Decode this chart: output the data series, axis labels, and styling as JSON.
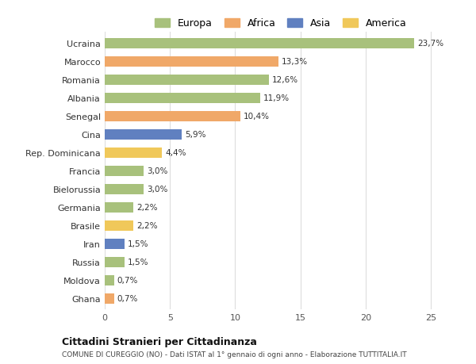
{
  "categories": [
    "Ucraina",
    "Marocco",
    "Romania",
    "Albania",
    "Senegal",
    "Cina",
    "Rep. Dominicana",
    "Francia",
    "Bielorussia",
    "Germania",
    "Brasile",
    "Iran",
    "Russia",
    "Moldova",
    "Ghana"
  ],
  "values": [
    23.7,
    13.3,
    12.6,
    11.9,
    10.4,
    5.9,
    4.4,
    3.0,
    3.0,
    2.2,
    2.2,
    1.5,
    1.5,
    0.7,
    0.7
  ],
  "labels": [
    "23,7%",
    "13,3%",
    "12,6%",
    "11,9%",
    "10,4%",
    "5,9%",
    "4,4%",
    "3,0%",
    "3,0%",
    "2,2%",
    "2,2%",
    "1,5%",
    "1,5%",
    "0,7%",
    "0,7%"
  ],
  "continents": [
    "Europa",
    "Africa",
    "Europa",
    "Europa",
    "Africa",
    "Asia",
    "America",
    "Europa",
    "Europa",
    "Europa",
    "America",
    "Asia",
    "Europa",
    "Europa",
    "Africa"
  ],
  "colors": {
    "Europa": "#a8c17c",
    "Africa": "#f0a868",
    "Asia": "#6080c0",
    "America": "#f0c85a"
  },
  "legend_order": [
    "Europa",
    "Africa",
    "Asia",
    "America"
  ],
  "xlim": [
    0,
    27
  ],
  "xticks": [
    0,
    5,
    10,
    15,
    20,
    25
  ],
  "title": "Cittadini Stranieri per Cittadinanza",
  "subtitle": "COMUNE DI CUREGGIO (NO) - Dati ISTAT al 1° gennaio di ogni anno - Elaborazione TUTTITALIA.IT",
  "bg_color": "#ffffff",
  "grid_color": "#dddddd",
  "bar_height": 0.55
}
